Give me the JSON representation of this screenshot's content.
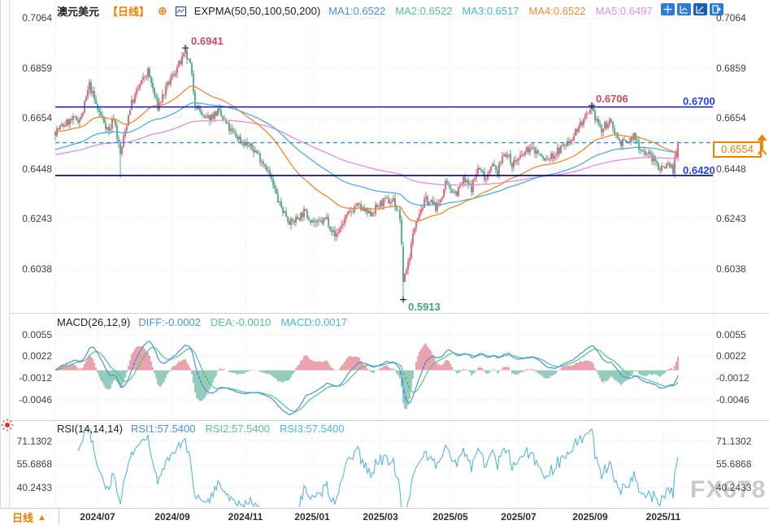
{
  "header": {
    "symbol": "澳元美元",
    "period_tag": "【日线】",
    "plus": "⊕",
    "indicator_label": "EXPMA(50,50,100,50,200)",
    "ma_values": [
      {
        "label": "MA1:0.6522",
        "color": "#4a8fe2"
      },
      {
        "label": "MA2:0.6522",
        "color": "#56c28c"
      },
      {
        "label": "MA3:0.6517",
        "color": "#45b8d8"
      },
      {
        "label": "MA4:0.6522",
        "color": "#ef8c30"
      },
      {
        "label": "MA5:0.6497",
        "color": "#e090dd"
      }
    ]
  },
  "toolbar": {
    "icons": [
      "move-tool",
      "fit-scale-tool",
      "axis-scale-tool",
      "pan-right-tool"
    ]
  },
  "panels": {
    "macd": {
      "title": "MACD(26,12,9)",
      "values": [
        {
          "label": "DIFF:-0.0002",
          "color": "#4a8fe2"
        },
        {
          "label": "DEA:-0.0010",
          "color": "#56c28c"
        },
        {
          "label": "MACD:0.0017",
          "color": "#45b8d8"
        }
      ]
    },
    "rsi": {
      "title": "RSI(14,14,14)",
      "values": [
        {
          "label": "RSI1:57.5400",
          "color": "#4a8fe2"
        },
        {
          "label": "RSI2:57.5400",
          "color": "#56c28c"
        },
        {
          "label": "RSI3:57.5400",
          "color": "#45b8d8"
        }
      ]
    }
  },
  "annotations": {
    "high1": {
      "text": "0.6941",
      "i": 80,
      "price": 0.6941
    },
    "high2": {
      "text": "0.6706",
      "i": 330,
      "price": 0.6706
    },
    "low1": {
      "text": "0.5913",
      "i": 214,
      "price": 0.5913
    },
    "upper_line": {
      "text": "0.6700",
      "price": 0.67
    },
    "lower_line": {
      "text": "0.6420",
      "price": 0.642
    },
    "last_price": {
      "text": "0.6554",
      "price": 0.6554
    }
  },
  "bottom_bar": {
    "period_label": "日线",
    "arrow": "▲"
  },
  "watermark": "FX678",
  "chart_data": [
    {
      "type": "candlestick",
      "title": "澳元美元 日线 (AUD/USD Daily)",
      "n_candles": 384,
      "y_ticks": [
        "0.7064",
        "0.6859",
        "0.6654",
        "0.6448",
        "0.6243",
        "0.6038"
      ],
      "ylim": [
        0.6038,
        0.7064
      ],
      "x_ticks": [
        {
          "i": 26,
          "label": "2024/07"
        },
        {
          "i": 72,
          "label": "2024/09"
        },
        {
          "i": 117,
          "label": "2024/11"
        },
        {
          "i": 158,
          "label": "2025/01"
        },
        {
          "i": 200,
          "label": "2025/03"
        },
        {
          "i": 243,
          "label": "2025/05"
        },
        {
          "i": 285,
          "label": "2025/07"
        },
        {
          "i": 329,
          "label": "2025/09"
        },
        {
          "i": 374,
          "label": "2025/11"
        }
      ],
      "price_anchors": [
        [
          0,
          0.66
        ],
        [
          8,
          0.664
        ],
        [
          16,
          0.6655
        ],
        [
          21,
          0.679
        ],
        [
          26,
          0.669
        ],
        [
          30,
          0.664
        ],
        [
          33,
          0.66
        ],
        [
          36,
          0.666
        ],
        [
          40,
          0.6505
        ],
        [
          46,
          0.67
        ],
        [
          52,
          0.679
        ],
        [
          57,
          0.6845
        ],
        [
          63,
          0.67
        ],
        [
          70,
          0.68
        ],
        [
          74,
          0.685
        ],
        [
          80,
          0.6915
        ],
        [
          83,
          0.687
        ],
        [
          86,
          0.672
        ],
        [
          92,
          0.6645
        ],
        [
          100,
          0.668
        ],
        [
          108,
          0.66
        ],
        [
          115,
          0.656
        ],
        [
          123,
          0.652
        ],
        [
          130,
          0.6455
        ],
        [
          138,
          0.63
        ],
        [
          145,
          0.6225
        ],
        [
          153,
          0.627
        ],
        [
          161,
          0.622
        ],
        [
          167,
          0.6245
        ],
        [
          172,
          0.617
        ],
        [
          178,
          0.624
        ],
        [
          185,
          0.63
        ],
        [
          193,
          0.626
        ],
        [
          201,
          0.631
        ],
        [
          208,
          0.632
        ],
        [
          212,
          0.625
        ],
        [
          214,
          0.6
        ],
        [
          217,
          0.606
        ],
        [
          222,
          0.625
        ],
        [
          228,
          0.632
        ],
        [
          235,
          0.629
        ],
        [
          240,
          0.638
        ],
        [
          247,
          0.635
        ],
        [
          251,
          0.64
        ],
        [
          256,
          0.637
        ],
        [
          260,
          0.645
        ],
        [
          265,
          0.641
        ],
        [
          268,
          0.647
        ],
        [
          272,
          0.643
        ],
        [
          276,
          0.652
        ],
        [
          281,
          0.647
        ],
        [
          286,
          0.649
        ],
        [
          291,
          0.653
        ],
        [
          296,
          0.652
        ],
        [
          301,
          0.648
        ],
        [
          306,
          0.65
        ],
        [
          311,
          0.653
        ],
        [
          316,
          0.656
        ],
        [
          323,
          0.663
        ],
        [
          330,
          0.668
        ],
        [
          333,
          0.665
        ],
        [
          336,
          0.66
        ],
        [
          340,
          0.664
        ],
        [
          343,
          0.662
        ],
        [
          347,
          0.656
        ],
        [
          351,
          0.655
        ],
        [
          356,
          0.658
        ],
        [
          360,
          0.653
        ],
        [
          366,
          0.65
        ],
        [
          372,
          0.645
        ],
        [
          377,
          0.647
        ],
        [
          380,
          0.6445
        ],
        [
          383,
          0.6554
        ]
      ],
      "key_points": [
        {
          "i": 40,
          "low": 0.641
        },
        {
          "i": 80,
          "high": 0.6941
        },
        {
          "i": 214,
          "open": 0.613,
          "close": 0.5985,
          "low": 0.5913
        },
        {
          "i": 330,
          "high": 0.6706
        },
        {
          "i": 383,
          "open": 0.6495,
          "close": 0.6554,
          "high": 0.6562,
          "low": 0.6478
        }
      ],
      "h_lines": [
        {
          "value": 0.67,
          "color": "#1414cc"
        },
        {
          "value": 0.642,
          "color": "#000088"
        }
      ],
      "last_price": 0.6554,
      "expma_periods": [
        50,
        100,
        200
      ],
      "colors": {
        "up": "#d9566a",
        "down": "#3fa37f",
        "ema50": "#f08636",
        "ema100": "#4ab0d9",
        "ema200": "#e38fd8",
        "last_price_line": "#2d87e0"
      }
    },
    {
      "type": "bar",
      "title": "MACD(26,12,9)",
      "params": [
        26,
        12,
        9
      ],
      "y_ticks": [
        "0.0055",
        "0.0022",
        "-0.0012",
        "-0.0046"
      ],
      "ylim": [
        -0.0046,
        0.0055
      ],
      "last": {
        "diff": -0.0002,
        "dea": -0.001,
        "macd": 0.0017
      },
      "colors": {
        "pos": "#d9566a",
        "neg": "#3fa37f",
        "diff": "#4a8fe2",
        "dea": "#56c28c"
      }
    },
    {
      "type": "line",
      "title": "RSI(14,14,14)",
      "params": [
        14,
        14,
        14
      ],
      "y_ticks": [
        "71.1302",
        "55.6868",
        "40.2433"
      ],
      "ylim": [
        25,
        85
      ],
      "last": 57.54,
      "colors": {
        "line": "#56b6dc"
      }
    }
  ]
}
